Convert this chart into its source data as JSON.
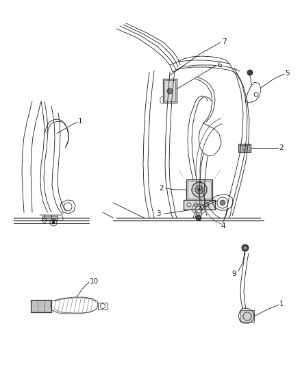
{
  "bg_color": "#ffffff",
  "line_color": "#1a1a1a",
  "fig_width": 4.38,
  "fig_height": 5.33,
  "dpi": 100,
  "gray_light": "#c8c8c8",
  "gray_mid": "#909090",
  "gray_dark": "#505050"
}
